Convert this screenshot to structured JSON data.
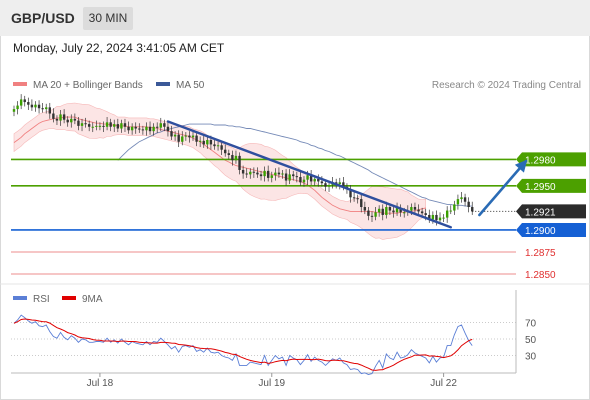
{
  "header": {
    "pair": "GBP/USD",
    "timeframe": "30 MIN"
  },
  "datetime": "Monday, July 22, 2024 3:41:05 AM CET",
  "legend": {
    "ma20": {
      "label": "MA 20 + Bollinger Bands",
      "color": "#f08080"
    },
    "ma50": {
      "label": "MA 50",
      "color": "#3b5998"
    }
  },
  "credit": "Research © 2024 Trading Central",
  "rsi_legend": {
    "rsi": {
      "label": "RSI",
      "color": "#5b7fd6"
    },
    "ma9": {
      "label": "9MA",
      "color": "#e00000"
    }
  },
  "chart_data": {
    "type": "candlestick",
    "ylim": [
      1.2841,
      1.3053
    ],
    "x_ticks": [
      {
        "label": "Jul 18",
        "bar": 24
      },
      {
        "label": "Jul 19",
        "bar": 72
      },
      {
        "label": "Jul 22",
        "bar": 120
      }
    ],
    "current_price": {
      "value": "1.2921",
      "color": "#2b2b2b"
    },
    "levels": [
      {
        "value": 1.298,
        "label": "1.2980",
        "color": "#4ca000",
        "kind": "resistance"
      },
      {
        "value": 1.295,
        "label": "1.2950",
        "color": "#4ca000",
        "kind": "resistance"
      },
      {
        "value": 1.29,
        "label": "1.2900",
        "color": "#1560d4",
        "kind": "pivot"
      },
      {
        "value": 1.2875,
        "label": "1.2875",
        "color": "#e03030",
        "kind": "support"
      },
      {
        "value": 1.285,
        "label": "1.2850",
        "color": "#e03030",
        "kind": "support"
      }
    ],
    "trend_line": {
      "from": {
        "bar": 43,
        "value": 1.3023
      },
      "to": {
        "bar": 122,
        "value": 1.2903
      }
    },
    "projection_arrow": {
      "from": {
        "bar": 130,
        "value": 1.2917
      },
      "to": {
        "bar": 143,
        "value": 1.2978
      }
    },
    "closes": [
      1.3037,
      1.3041,
      1.3048,
      1.3045,
      1.3042,
      1.3039,
      1.3042,
      1.3038,
      1.3037,
      1.3039,
      1.3032,
      1.3026,
      1.3024,
      1.3031,
      1.3025,
      1.3022,
      1.3026,
      1.3024,
      1.3018,
      1.3021,
      1.302,
      1.3017,
      1.3017,
      1.3018,
      1.3018,
      1.3017,
      1.3022,
      1.3017,
      1.302,
      1.3015,
      1.3021,
      1.3017,
      1.3013,
      1.3017,
      1.3015,
      1.3014,
      1.3013,
      1.3017,
      1.3012,
      1.3017,
      1.3016,
      1.3021,
      1.3017,
      1.3012,
      1.3006,
      1.3008,
      1.3,
      1.3006,
      1.3007,
      1.3005,
      1.3007,
      1.3,
      1.3001,
      1.2997,
      1.3002,
      1.2997,
      1.2995,
      1.2996,
      1.2991,
      1.2987,
      1.2985,
      1.2979,
      1.2984,
      1.2968,
      1.2964,
      1.2963,
      1.2966,
      1.2965,
      1.2963,
      1.2961,
      1.2967,
      1.2959,
      1.2962,
      1.2965,
      1.2963,
      1.2964,
      1.2956,
      1.2963,
      1.2961,
      1.296,
      1.2954,
      1.2957,
      1.2962,
      1.2955,
      1.2958,
      1.2955,
      1.2953,
      1.2949,
      1.2951,
      1.2954,
      1.2952,
      1.2954,
      1.2949,
      1.2946,
      1.2937,
      1.2936,
      1.2935,
      1.2926,
      1.2922,
      1.2916,
      1.2915,
      1.292,
      1.2924,
      1.2917,
      1.2926,
      1.2922,
      1.292,
      1.2925,
      1.292,
      1.292,
      1.2922,
      1.2926,
      1.2923,
      1.2921,
      1.2919,
      1.2917,
      1.2912,
      1.2917,
      1.2911,
      1.2914,
      1.2914,
      1.2922,
      1.2922,
      1.2929,
      1.2935,
      1.2937,
      1.2932,
      1.2926,
      1.2921
    ],
    "ma20": [
      1.2999,
      1.3002,
      1.3005,
      1.3009,
      1.3012,
      1.3015,
      1.3018,
      1.3021,
      1.3023,
      1.3024,
      1.3025,
      1.3026,
      1.3027,
      1.3027,
      1.3028,
      1.3028,
      1.3028,
      1.3028,
      1.3026,
      1.3025,
      1.3024,
      1.3023,
      1.3022,
      1.3021,
      1.3021,
      1.302,
      1.302,
      1.3019,
      1.3019,
      1.3018,
      1.3018,
      1.3018,
      1.3017,
      1.3017,
      1.3017,
      1.3017,
      1.3017,
      1.3017,
      1.3016,
      1.3016,
      1.3015,
      1.3014,
      1.3013,
      1.3012,
      1.3011,
      1.301,
      1.3009,
      1.3008,
      1.3007,
      1.3006,
      1.3004,
      1.3002,
      1.3,
      1.2997,
      1.2994,
      1.2991,
      1.2988,
      1.2985,
      1.2982,
      1.2979,
      1.2977,
      1.2975,
      1.2973,
      1.2972,
      1.2971,
      1.297,
      1.2969,
      1.2968,
      1.2967,
      1.2966,
      1.2965,
      1.2964,
      1.2963,
      1.2962,
      1.2961,
      1.296,
      1.2959,
      1.2958,
      1.2957,
      1.2956,
      1.2955,
      1.2953,
      1.2951,
      1.2948,
      1.2945,
      1.2941,
      1.2937,
      1.2934,
      1.2931,
      1.2928,
      1.2926,
      1.2924,
      1.2923,
      1.2922,
      1.2921,
      1.2921,
      1.2921,
      1.2921,
      1.2921,
      1.2921,
      1.2921,
      1.292,
      1.292,
      1.2919,
      1.2919,
      1.2919,
      1.2919,
      1.2919,
      1.292,
      1.292,
      1.2921,
      1.2921,
      1.2922,
      1.2923,
      1.2924,
      1.2925
    ],
    "ma50": [
      1.2979,
      1.2983,
      1.2987,
      1.2991,
      1.2994,
      1.2997,
      1.3,
      1.3002,
      1.3004,
      1.3006,
      1.3008,
      1.301,
      1.3011,
      1.3013,
      1.3014,
      1.3015,
      1.3016,
      1.3017,
      1.3018,
      1.3019,
      1.302,
      1.302,
      1.302,
      1.302,
      1.302,
      1.302,
      1.302,
      1.3019,
      1.3019,
      1.3019,
      1.3019,
      1.3018,
      1.3018,
      1.3017,
      1.3017,
      1.3016,
      1.3015,
      1.3015,
      1.3014,
      1.3013,
      1.3012,
      1.3011,
      1.301,
      1.3009,
      1.3008,
      1.3007,
      1.3006,
      1.3005,
      1.3004,
      1.3003,
      1.3002,
      1.3,
      1.2999,
      1.2998,
      1.2996,
      1.2995,
      1.2993,
      1.2992,
      1.299,
      1.2989,
      1.2987,
      1.2985,
      1.2984,
      1.2982,
      1.298,
      1.2978,
      1.2976,
      1.2974,
      1.2972,
      1.297,
      1.2968,
      1.2965,
      1.2963,
      1.2961,
      1.2959,
      1.2957,
      1.2955,
      1.2953,
      1.2951,
      1.2949,
      1.2947,
      1.2945,
      1.2943,
      1.2941,
      1.2939,
      1.2937,
      1.2936,
      1.2934,
      1.2933,
      1.2932,
      1.2931,
      1.293,
      1.2929,
      1.2929,
      1.2928,
      1.2928,
      1.2928,
      1.2927,
      1.2927,
      1.2927
    ],
    "rsi": {
      "ylim": [
        10,
        90
      ],
      "ticks": [
        70,
        50,
        30
      ],
      "values": [
        69,
        73,
        79,
        76,
        72,
        69,
        71,
        66,
        65,
        67,
        59,
        53,
        51,
        58,
        52,
        49,
        54,
        51,
        46,
        50,
        49,
        46,
        46,
        47,
        47,
        46,
        51,
        46,
        49,
        45,
        50,
        46,
        43,
        47,
        45,
        44,
        43,
        47,
        43,
        47,
        46,
        51,
        47,
        43,
        38,
        41,
        34,
        41,
        42,
        40,
        42,
        35,
        37,
        34,
        39,
        34,
        33,
        34,
        30,
        28,
        27,
        24,
        32,
        18,
        18,
        18,
        22,
        21,
        20,
        19,
        30,
        18,
        24,
        30,
        26,
        28,
        18,
        30,
        27,
        25,
        19,
        24,
        31,
        23,
        28,
        24,
        22,
        18,
        22,
        26,
        24,
        27,
        21,
        19,
        13,
        14,
        13,
        8,
        9,
        7,
        8,
        17,
        24,
        15,
        32,
        27,
        25,
        34,
        27,
        28,
        31,
        37,
        33,
        31,
        29,
        27,
        21,
        29,
        22,
        27,
        28,
        42,
        42,
        55,
        65,
        67,
        57,
        48,
        42
      ]
    }
  }
}
